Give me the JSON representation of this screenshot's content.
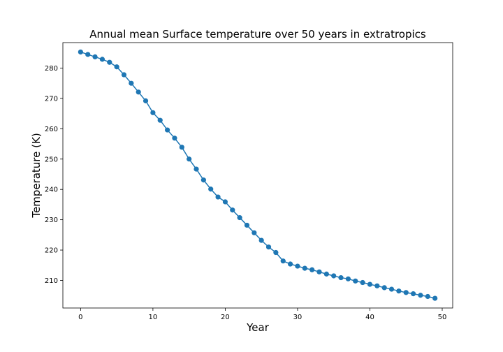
{
  "chart_data": {
    "type": "line",
    "title": "Annual mean Surface temperature over 50 years in extratropics",
    "xlabel": "Year",
    "ylabel": "Temperature (K)",
    "xlim": [
      -2.45,
      51.45
    ],
    "ylim": [
      200.9,
      288.4
    ],
    "xticks": [
      0,
      10,
      20,
      30,
      40,
      50
    ],
    "yticks": [
      210,
      220,
      230,
      240,
      250,
      260,
      270,
      280
    ],
    "grid": false,
    "legend": "none",
    "marker": "circle",
    "color": "#1f77b4",
    "series": [
      {
        "x": [
          0,
          1,
          2,
          3,
          4,
          5,
          6,
          7,
          8,
          9,
          10,
          11,
          12,
          13,
          14,
          15,
          16,
          17,
          18,
          19,
          20,
          21,
          22,
          23,
          24,
          25,
          26,
          27,
          28,
          29,
          30,
          31,
          32,
          33,
          34,
          35,
          36,
          37,
          38,
          39,
          40,
          41,
          42,
          43,
          44,
          45,
          46,
          47,
          48,
          49
        ],
        "values": [
          285.3,
          284.5,
          283.7,
          282.9,
          281.9,
          280.4,
          277.8,
          275.0,
          272.1,
          269.2,
          265.3,
          262.8,
          259.6,
          256.9,
          253.9,
          250.0,
          246.7,
          243.1,
          240.1,
          237.5,
          235.9,
          233.2,
          230.7,
          228.2,
          225.7,
          223.2,
          221.0,
          219.2,
          216.4,
          215.4,
          214.7,
          214.0,
          213.5,
          212.8,
          212.1,
          211.5,
          210.9,
          210.5,
          209.8,
          209.3,
          208.7,
          208.2,
          207.6,
          207.1,
          206.5,
          206.0,
          205.6,
          205.1,
          204.7,
          204.1
        ]
      }
    ]
  }
}
